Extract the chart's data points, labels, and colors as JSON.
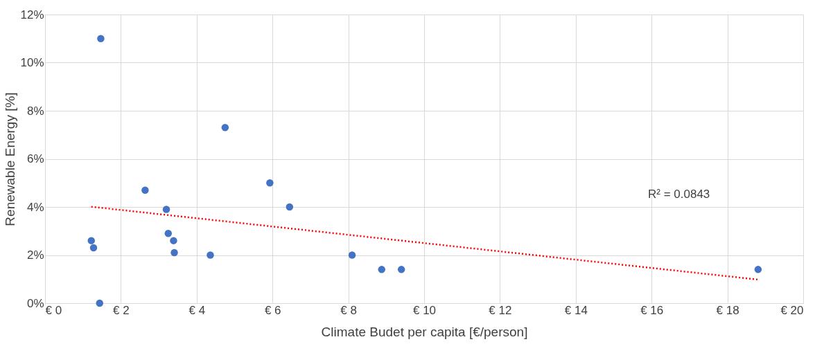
{
  "chart_data": {
    "type": "scatter",
    "xlabel": "Climate Budet per capita [€/person]",
    "ylabel": "Renewable Energy [%]",
    "xlim": [
      0,
      20
    ],
    "ylim": [
      0,
      12
    ],
    "xticks": [
      {
        "value": 0,
        "label": "€ 0"
      },
      {
        "value": 2,
        "label": "€ 2"
      },
      {
        "value": 4,
        "label": "€ 4"
      },
      {
        "value": 6,
        "label": "€ 6"
      },
      {
        "value": 8,
        "label": "€ 8"
      },
      {
        "value": 10,
        "label": "€ 10"
      },
      {
        "value": 12,
        "label": "€ 12"
      },
      {
        "value": 14,
        "label": "€ 14"
      },
      {
        "value": 16,
        "label": "€ 16"
      },
      {
        "value": 18,
        "label": "€ 18"
      },
      {
        "value": 20,
        "label": "€ 20"
      }
    ],
    "yticks": [
      {
        "value": 0,
        "label": "0%"
      },
      {
        "value": 2,
        "label": "2%"
      },
      {
        "value": 4,
        "label": "4%"
      },
      {
        "value": 6,
        "label": "6%"
      },
      {
        "value": 8,
        "label": "8%"
      },
      {
        "value": 10,
        "label": "10%"
      },
      {
        "value": 12,
        "label": "12%"
      }
    ],
    "grid": true,
    "series": [
      {
        "type": "scatter",
        "color": "#4472c4",
        "marker": "circle",
        "x": [
          1.47,
          4.75,
          2.64,
          5.93,
          6.45,
          3.2,
          3.25,
          3.39,
          3.41,
          1.22,
          1.28,
          1.44,
          4.36,
          8.1,
          8.88,
          9.4,
          18.81
        ],
        "values": [
          11.0,
          7.3,
          4.7,
          5.0,
          4.0,
          3.9,
          2.9,
          2.6,
          2.1,
          2.6,
          2.3,
          0,
          2.0,
          2.0,
          1.4,
          1.4,
          1.4
        ]
      },
      {
        "type": "line",
        "color": "#ff0000",
        "line_style": "dotted",
        "marker": "none",
        "x": [
          1.22,
          18.81
        ],
        "values": [
          4.01,
          0.98
        ]
      }
    ],
    "annotations": [
      "R² = 0.0843"
    ]
  }
}
